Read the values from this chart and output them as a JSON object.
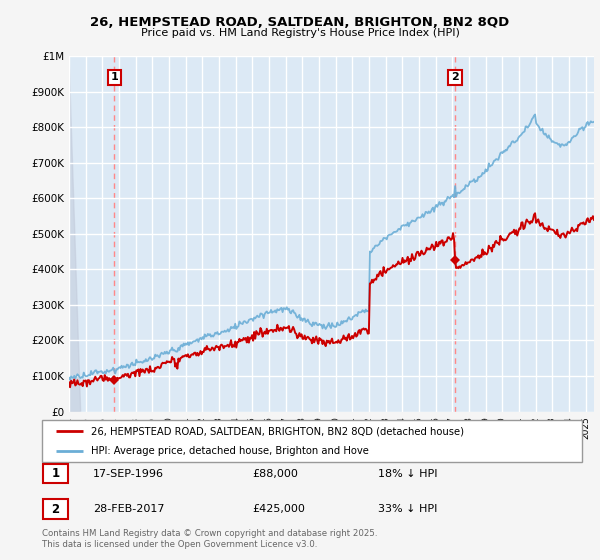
{
  "title": "26, HEMPSTEAD ROAD, SALTDEAN, BRIGHTON, BN2 8QD",
  "subtitle": "Price paid vs. HM Land Registry's House Price Index (HPI)",
  "yticks": [
    0,
    100000,
    200000,
    300000,
    400000,
    500000,
    600000,
    700000,
    800000,
    900000,
    1000000
  ],
  "ytick_labels": [
    "£0",
    "£100K",
    "£200K",
    "£300K",
    "£400K",
    "£500K",
    "£600K",
    "£700K",
    "£800K",
    "£900K",
    "£1M"
  ],
  "sale1_date": 1996.72,
  "sale1_price": 88000,
  "sale2_date": 2017.16,
  "sale2_price": 425000,
  "hpi_color": "#6baed6",
  "hpi_fill_color": "#c6dbef",
  "property_color": "#cc0000",
  "dashed_line_color": "#ff8888",
  "plot_bg_color": "#dce9f5",
  "legend_label1": "26, HEMPSTEAD ROAD, SALTDEAN, BRIGHTON, BN2 8QD (detached house)",
  "legend_label2": "HPI: Average price, detached house, Brighton and Hove",
  "annotation1_label": "1",
  "annotation1_date_str": "17-SEP-1996",
  "annotation1_price_str": "£88,000",
  "annotation1_hpi_str": "18% ↓ HPI",
  "annotation2_label": "2",
  "annotation2_date_str": "28-FEB-2017",
  "annotation2_price_str": "£425,000",
  "annotation2_hpi_str": "33% ↓ HPI",
  "footer": "Contains HM Land Registry data © Crown copyright and database right 2025.\nThis data is licensed under the Open Government Licence v3.0.",
  "xmin": 1994.0,
  "xmax": 2025.5
}
